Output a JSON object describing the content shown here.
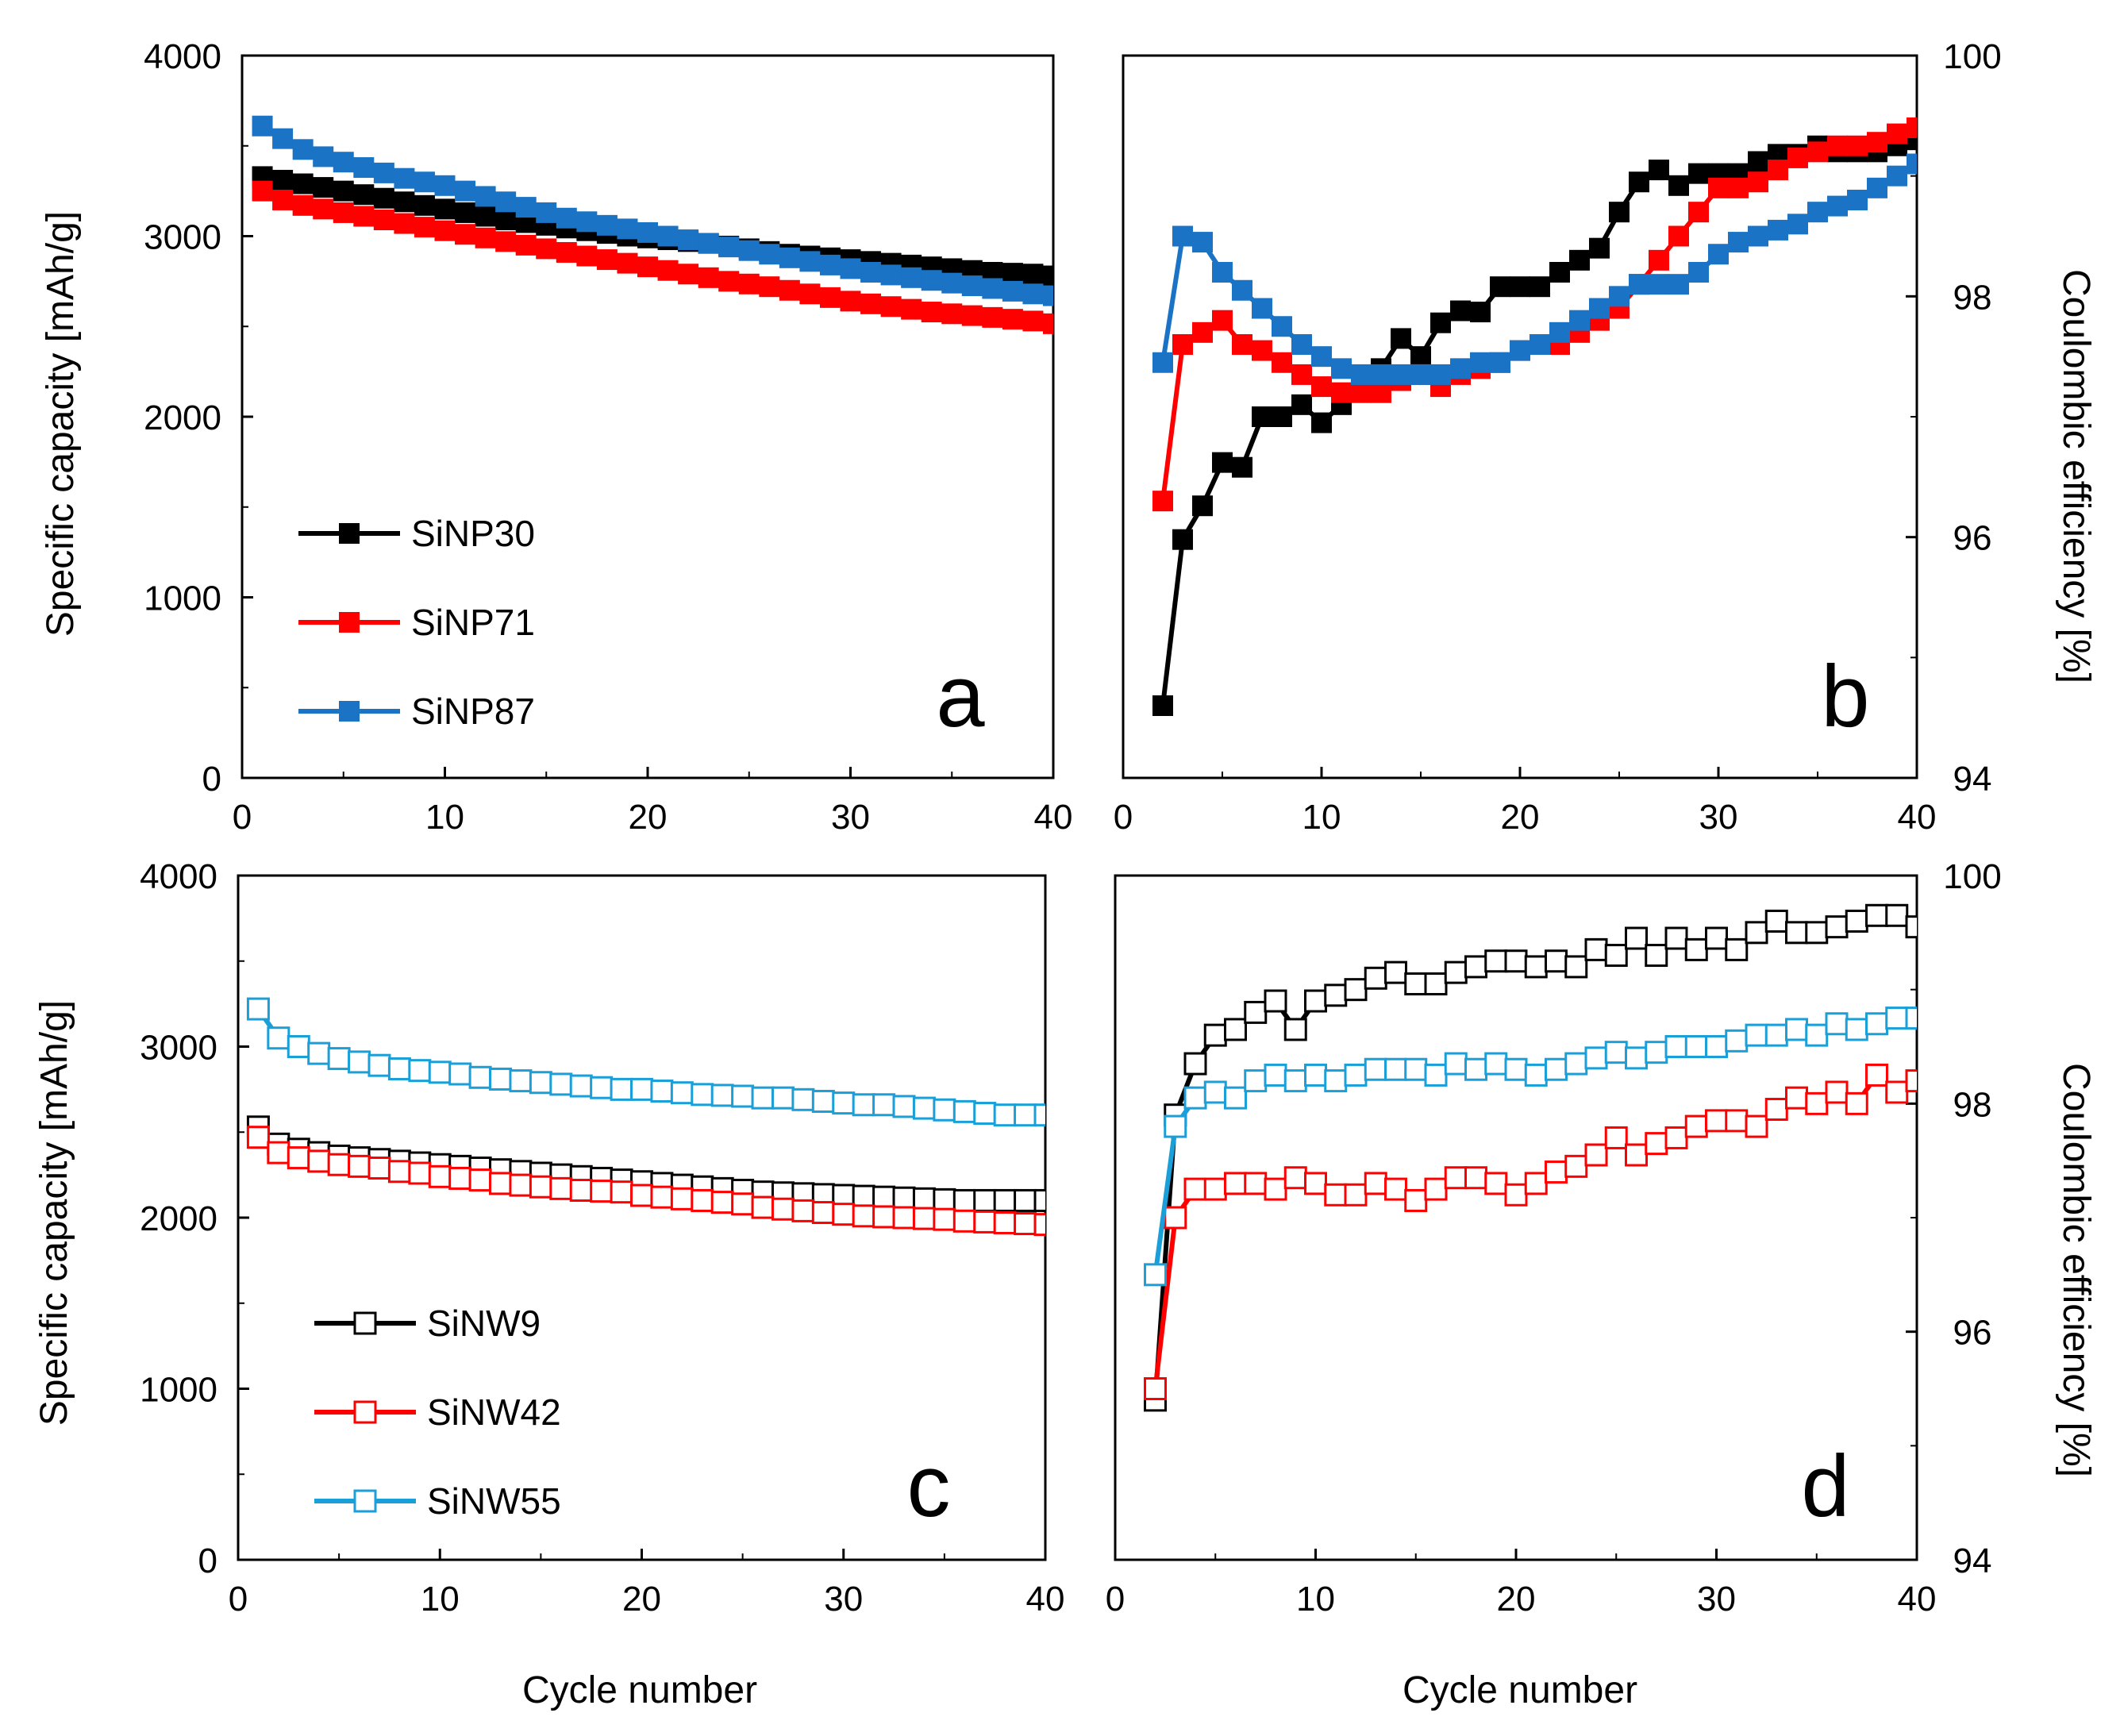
{
  "figure": {
    "xlabel": "Cycle number"
  },
  "chart_data": [
    {
      "id": "a",
      "letter": "a",
      "type": "line",
      "marker": "filled-square",
      "ylabel": "Specific capacity [mAh/g]",
      "xlabel": "",
      "xlim": [
        0,
        40
      ],
      "ylim": [
        0,
        4000
      ],
      "xticks": [
        "0",
        "10",
        "20",
        "30",
        "40"
      ],
      "yticks": [
        "0",
        "1000",
        "2000",
        "3000",
        "4000"
      ],
      "y_side": "left",
      "legend": {
        "placement": "lower-left"
      },
      "series": [
        {
          "name": "SiNP30",
          "color": "#000000",
          "x": [
            1,
            2,
            3,
            4,
            5,
            6,
            7,
            8,
            9,
            10,
            11,
            12,
            13,
            14,
            15,
            16,
            17,
            18,
            19,
            20,
            21,
            22,
            23,
            24,
            25,
            26,
            27,
            28,
            29,
            30,
            31,
            32,
            33,
            34,
            35,
            36,
            37,
            38,
            39,
            40
          ],
          "y": [
            3330,
            3310,
            3290,
            3270,
            3250,
            3230,
            3210,
            3190,
            3170,
            3150,
            3130,
            3110,
            3090,
            3075,
            3060,
            3045,
            3030,
            3015,
            3000,
            2990,
            2980,
            2970,
            2960,
            2945,
            2930,
            2915,
            2900,
            2890,
            2880,
            2870,
            2860,
            2850,
            2840,
            2830,
            2820,
            2810,
            2800,
            2795,
            2790,
            2780
          ]
        },
        {
          "name": "SiNP71",
          "color": "#ff0000",
          "x": [
            1,
            2,
            3,
            4,
            5,
            6,
            7,
            8,
            9,
            10,
            11,
            12,
            13,
            14,
            15,
            16,
            17,
            18,
            19,
            20,
            21,
            22,
            23,
            24,
            25,
            26,
            27,
            28,
            29,
            30,
            31,
            32,
            33,
            34,
            35,
            36,
            37,
            38,
            39,
            40
          ],
          "y": [
            3250,
            3200,
            3170,
            3150,
            3130,
            3110,
            3090,
            3070,
            3050,
            3030,
            3010,
            2990,
            2970,
            2950,
            2930,
            2910,
            2890,
            2870,
            2850,
            2830,
            2810,
            2790,
            2770,
            2750,
            2735,
            2720,
            2700,
            2680,
            2660,
            2640,
            2625,
            2610,
            2595,
            2580,
            2570,
            2560,
            2550,
            2540,
            2530,
            2515
          ]
        },
        {
          "name": "SiNP87",
          "color": "#1a73c4",
          "x": [
            1,
            2,
            3,
            4,
            5,
            6,
            7,
            8,
            9,
            10,
            11,
            12,
            13,
            14,
            15,
            16,
            17,
            18,
            19,
            20,
            21,
            22,
            23,
            24,
            25,
            26,
            27,
            28,
            29,
            30,
            31,
            32,
            33,
            34,
            35,
            36,
            37,
            38,
            39,
            40
          ],
          "y": [
            3610,
            3540,
            3480,
            3440,
            3410,
            3380,
            3350,
            3320,
            3300,
            3280,
            3250,
            3220,
            3190,
            3160,
            3130,
            3100,
            3080,
            3060,
            3040,
            3020,
            3000,
            2980,
            2960,
            2940,
            2920,
            2900,
            2880,
            2860,
            2840,
            2820,
            2800,
            2785,
            2770,
            2755,
            2740,
            2725,
            2710,
            2695,
            2680,
            2670
          ]
        }
      ]
    },
    {
      "id": "b",
      "letter": "b",
      "type": "line",
      "marker": "filled-square",
      "ylabel": "Coulombic efficiency [%]",
      "xlabel": "",
      "xlim": [
        0,
        40
      ],
      "ylim": [
        94,
        100
      ],
      "xticks": [
        "0",
        "10",
        "20",
        "30",
        "40"
      ],
      "yticks": [
        "94",
        "96",
        "98",
        "100"
      ],
      "y_side": "right",
      "series": [
        {
          "name": "SiNP30",
          "color": "#000000",
          "x": [
            2,
            3,
            4,
            5,
            6,
            7,
            8,
            9,
            10,
            11,
            12,
            13,
            14,
            15,
            16,
            17,
            18,
            19,
            20,
            21,
            22,
            23,
            24,
            25,
            26,
            27,
            28,
            29,
            30,
            31,
            32,
            33,
            34,
            35,
            36,
            37,
            38,
            39,
            40
          ],
          "y": [
            94.6,
            95.98,
            96.26,
            96.62,
            96.58,
            97.0,
            97.0,
            97.1,
            96.95,
            97.1,
            97.3,
            97.4,
            97.65,
            97.5,
            97.78,
            97.88,
            97.87,
            98.08,
            98.08,
            98.08,
            98.2,
            98.3,
            98.4,
            98.7,
            98.95,
            99.05,
            98.92,
            99.02,
            99.02,
            99.02,
            99.12,
            99.18,
            99.18,
            99.25,
            99.2,
            99.2,
            99.2,
            99.25,
            99.3
          ]
        },
        {
          "name": "SiNP71",
          "color": "#ff0000",
          "x": [
            2,
            3,
            4,
            5,
            6,
            7,
            8,
            9,
            10,
            11,
            12,
            13,
            14,
            15,
            16,
            17,
            18,
            19,
            20,
            21,
            22,
            23,
            24,
            25,
            26,
            27,
            28,
            29,
            30,
            31,
            32,
            33,
            34,
            35,
            36,
            37,
            38,
            39,
            40
          ],
          "y": [
            96.3,
            97.6,
            97.7,
            97.8,
            97.6,
            97.55,
            97.45,
            97.35,
            97.25,
            97.2,
            97.2,
            97.2,
            97.3,
            97.35,
            97.25,
            97.35,
            97.4,
            97.45,
            97.55,
            97.6,
            97.6,
            97.7,
            97.8,
            97.9,
            98.1,
            98.3,
            98.5,
            98.7,
            98.9,
            98.9,
            98.95,
            99.05,
            99.15,
            99.2,
            99.25,
            99.25,
            99.28,
            99.35,
            99.4
          ]
        },
        {
          "name": "SiNP87",
          "color": "#1a73c4",
          "x": [
            2,
            3,
            4,
            5,
            6,
            7,
            8,
            9,
            10,
            11,
            12,
            13,
            14,
            15,
            16,
            17,
            18,
            19,
            20,
            21,
            22,
            23,
            24,
            25,
            26,
            27,
            28,
            29,
            30,
            31,
            32,
            33,
            34,
            35,
            36,
            37,
            38,
            39,
            40
          ],
          "y": [
            97.45,
            98.5,
            98.45,
            98.2,
            98.05,
            97.9,
            97.75,
            97.6,
            97.5,
            97.4,
            97.35,
            97.35,
            97.35,
            97.35,
            97.35,
            97.4,
            97.45,
            97.45,
            97.55,
            97.6,
            97.7,
            97.8,
            97.9,
            98.0,
            98.1,
            98.1,
            98.1,
            98.2,
            98.35,
            98.45,
            98.5,
            98.55,
            98.6,
            98.7,
            98.75,
            98.8,
            98.9,
            99.0,
            99.1
          ]
        }
      ]
    },
    {
      "id": "c",
      "letter": "c",
      "type": "line",
      "marker": "open-square",
      "ylabel": "Specific capacity [mAh/g]",
      "xlabel": "Cycle number",
      "xlim": [
        0,
        40
      ],
      "ylim": [
        0,
        4000
      ],
      "xticks": [
        "0",
        "10",
        "20",
        "30",
        "40"
      ],
      "yticks": [
        "0",
        "1000",
        "2000",
        "3000",
        "4000"
      ],
      "y_side": "left",
      "legend": {
        "placement": "lower-left"
      },
      "series": [
        {
          "name": "SiNW9",
          "color": "#000000",
          "x": [
            1,
            2,
            3,
            4,
            5,
            6,
            7,
            8,
            9,
            10,
            11,
            12,
            13,
            14,
            15,
            16,
            17,
            18,
            19,
            20,
            21,
            22,
            23,
            24,
            25,
            26,
            27,
            28,
            29,
            30,
            31,
            32,
            33,
            34,
            35,
            36,
            37,
            38,
            39,
            40
          ],
          "y": [
            2530,
            2430,
            2400,
            2380,
            2360,
            2350,
            2340,
            2330,
            2320,
            2310,
            2300,
            2290,
            2280,
            2270,
            2260,
            2250,
            2240,
            2230,
            2220,
            2210,
            2200,
            2190,
            2180,
            2170,
            2160,
            2150,
            2145,
            2140,
            2135,
            2130,
            2125,
            2120,
            2115,
            2110,
            2105,
            2100,
            2100,
            2100,
            2100,
            2100
          ]
        },
        {
          "name": "SiNW42",
          "color": "#ff0000",
          "x": [
            1,
            2,
            3,
            4,
            5,
            6,
            7,
            8,
            9,
            10,
            11,
            12,
            13,
            14,
            15,
            16,
            17,
            18,
            19,
            20,
            21,
            22,
            23,
            24,
            25,
            26,
            27,
            28,
            29,
            30,
            31,
            32,
            33,
            34,
            35,
            36,
            37,
            38,
            39,
            40
          ],
          "y": [
            2470,
            2380,
            2350,
            2330,
            2310,
            2300,
            2290,
            2270,
            2260,
            2240,
            2230,
            2220,
            2200,
            2190,
            2180,
            2170,
            2160,
            2155,
            2150,
            2130,
            2120,
            2110,
            2100,
            2090,
            2080,
            2060,
            2050,
            2040,
            2030,
            2020,
            2010,
            2005,
            2000,
            1995,
            1990,
            1980,
            1975,
            1970,
            1965,
            1960
          ]
        },
        {
          "name": "SiNW55",
          "color": "#1a9fd8",
          "x": [
            1,
            2,
            3,
            4,
            5,
            6,
            7,
            8,
            9,
            10,
            11,
            12,
            13,
            14,
            15,
            16,
            17,
            18,
            19,
            20,
            21,
            22,
            23,
            24,
            25,
            26,
            27,
            28,
            29,
            30,
            31,
            32,
            33,
            34,
            35,
            36,
            37,
            38,
            39,
            40
          ],
          "y": [
            3220,
            3050,
            3000,
            2960,
            2930,
            2910,
            2890,
            2870,
            2860,
            2850,
            2840,
            2820,
            2810,
            2800,
            2790,
            2780,
            2770,
            2760,
            2750,
            2750,
            2740,
            2730,
            2720,
            2715,
            2710,
            2700,
            2700,
            2690,
            2680,
            2670,
            2660,
            2660,
            2650,
            2640,
            2630,
            2620,
            2610,
            2600,
            2600,
            2600
          ]
        }
      ]
    },
    {
      "id": "d",
      "letter": "d",
      "type": "line",
      "marker": "open-square",
      "ylabel": "Coulombic efficiency [%]",
      "xlabel": "Cycle number",
      "xlim": [
        0,
        40
      ],
      "ylim": [
        94,
        100
      ],
      "xticks": [
        "0",
        "10",
        "20",
        "30",
        "40"
      ],
      "yticks": [
        "94",
        "96",
        "98",
        "100"
      ],
      "y_side": "right",
      "series": [
        {
          "name": "SiNW9",
          "color": "#000000",
          "x": [
            2,
            3,
            4,
            5,
            6,
            7,
            8,
            9,
            10,
            11,
            12,
            13,
            14,
            15,
            16,
            17,
            18,
            19,
            20,
            21,
            22,
            23,
            24,
            25,
            26,
            27,
            28,
            29,
            30,
            31,
            32,
            33,
            34,
            35,
            36,
            37,
            38,
            39,
            40
          ],
          "y": [
            95.4,
            97.9,
            98.35,
            98.6,
            98.65,
            98.8,
            98.9,
            98.65,
            98.9,
            98.95,
            99.0,
            99.1,
            99.15,
            99.05,
            99.05,
            99.15,
            99.2,
            99.25,
            99.25,
            99.2,
            99.25,
            99.2,
            99.35,
            99.3,
            99.45,
            99.3,
            99.45,
            99.35,
            99.45,
            99.35,
            99.5,
            99.6,
            99.5,
            99.5,
            99.55,
            99.6,
            99.65,
            99.65,
            99.55
          ]
        },
        {
          "name": "SiNW42",
          "color": "#ff0000",
          "x": [
            2,
            3,
            4,
            5,
            6,
            7,
            8,
            9,
            10,
            11,
            12,
            13,
            14,
            15,
            16,
            17,
            18,
            19,
            20,
            21,
            22,
            23,
            24,
            25,
            26,
            27,
            28,
            29,
            30,
            31,
            32,
            33,
            34,
            35,
            36,
            37,
            38,
            39,
            40
          ],
          "y": [
            95.5,
            97.0,
            97.25,
            97.25,
            97.3,
            97.3,
            97.25,
            97.35,
            97.3,
            97.2,
            97.2,
            97.3,
            97.25,
            97.15,
            97.25,
            97.35,
            97.35,
            97.3,
            97.2,
            97.3,
            97.4,
            97.45,
            97.55,
            97.7,
            97.55,
            97.65,
            97.7,
            97.8,
            97.85,
            97.85,
            97.8,
            97.95,
            98.05,
            98.0,
            98.1,
            98.0,
            98.25,
            98.1,
            98.2
          ]
        },
        {
          "name": "SiNW55",
          "color": "#1a9fd8",
          "x": [
            2,
            3,
            4,
            5,
            6,
            7,
            8,
            9,
            10,
            11,
            12,
            13,
            14,
            15,
            16,
            17,
            18,
            19,
            20,
            21,
            22,
            23,
            24,
            25,
            26,
            27,
            28,
            29,
            30,
            31,
            32,
            33,
            34,
            35,
            36,
            37,
            38,
            39,
            40
          ],
          "y": [
            96.5,
            97.8,
            98.05,
            98.1,
            98.05,
            98.2,
            98.25,
            98.2,
            98.25,
            98.2,
            98.25,
            98.3,
            98.3,
            98.3,
            98.25,
            98.35,
            98.3,
            98.35,
            98.3,
            98.25,
            98.3,
            98.35,
            98.4,
            98.45,
            98.4,
            98.45,
            98.5,
            98.5,
            98.5,
            98.55,
            98.6,
            98.6,
            98.65,
            98.6,
            98.7,
            98.65,
            98.7,
            98.75,
            98.75
          ]
        }
      ]
    }
  ]
}
